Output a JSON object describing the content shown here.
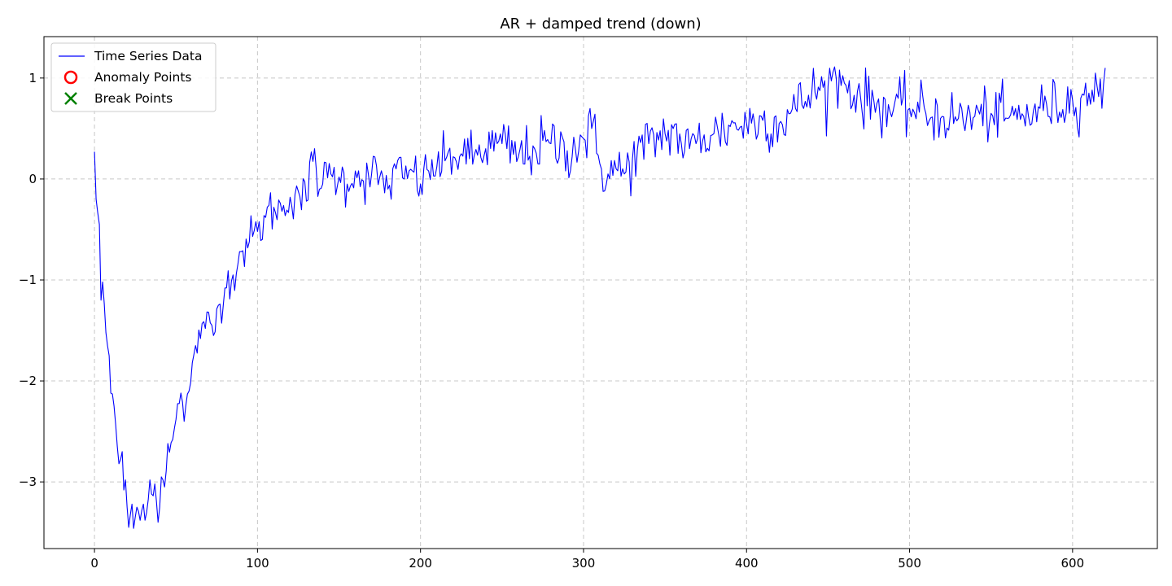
{
  "chart_data": {
    "type": "line",
    "title": "AR + damped trend (down)",
    "xlabel": "",
    "ylabel": "",
    "xlim": [
      -31,
      652
    ],
    "ylim": [
      -3.66,
      1.41
    ],
    "xticks": [
      0,
      100,
      200,
      300,
      400,
      500,
      600
    ],
    "yticks": [
      1,
      0,
      -1,
      -2,
      -3
    ],
    "ytick_labels": [
      "1",
      "0",
      "−1",
      "−2",
      "−3"
    ],
    "grid": true,
    "legend_position": "upper left",
    "legend": [
      {
        "label": "Time Series Data",
        "marker": "line",
        "color": "#0000ff"
      },
      {
        "label": "Anomaly Points",
        "marker": "circle",
        "color": "#ff0000"
      },
      {
        "label": "Break Points",
        "marker": "x",
        "color": "#008000"
      }
    ],
    "series": [
      {
        "name": "Time Series Data",
        "color": "#0000ff",
        "x_start": 0,
        "x_end": 620,
        "anchors": [
          [
            0,
            0.27
          ],
          [
            1,
            -0.2
          ],
          [
            3,
            -0.45
          ],
          [
            4,
            -1.2
          ],
          [
            5,
            -1.02
          ],
          [
            7,
            -1.52
          ],
          [
            9,
            -1.75
          ],
          [
            10,
            -2.12
          ],
          [
            12,
            -2.25
          ],
          [
            14,
            -2.65
          ],
          [
            15,
            -2.82
          ],
          [
            17,
            -2.7
          ],
          [
            18,
            -3.08
          ],
          [
            19,
            -2.98
          ],
          [
            20,
            -3.25
          ],
          [
            21,
            -3.45
          ],
          [
            23,
            -3.22
          ],
          [
            24,
            -3.46
          ],
          [
            26,
            -3.25
          ],
          [
            28,
            -3.38
          ],
          [
            30,
            -3.22
          ],
          [
            32,
            -3.3
          ],
          [
            34,
            -2.98
          ],
          [
            35,
            -3.12
          ],
          [
            37,
            -3.02
          ],
          [
            39,
            -3.4
          ],
          [
            41,
            -2.95
          ],
          [
            43,
            -3.05
          ],
          [
            45,
            -2.62
          ],
          [
            48,
            -2.58
          ],
          [
            50,
            -2.38
          ],
          [
            53,
            -2.12
          ],
          [
            55,
            -2.4
          ],
          [
            58,
            -2.1
          ],
          [
            60,
            -1.82
          ],
          [
            62,
            -1.65
          ],
          [
            65,
            -1.58
          ],
          [
            68,
            -1.48
          ],
          [
            70,
            -1.32
          ],
          [
            73,
            -1.55
          ],
          [
            76,
            -1.25
          ],
          [
            80,
            -1.08
          ],
          [
            85,
            -0.95
          ],
          [
            90,
            -0.72
          ],
          [
            95,
            -0.62
          ],
          [
            100,
            -0.52
          ],
          [
            105,
            -0.38
          ],
          [
            110,
            -0.28
          ],
          [
            115,
            -0.32
          ],
          [
            120,
            -0.18
          ],
          [
            125,
            -0.12
          ],
          [
            130,
            -0.22
          ],
          [
            135,
            0.3
          ],
          [
            138,
            -0.1
          ],
          [
            140,
            -0.05
          ],
          [
            145,
            0.05
          ],
          [
            150,
            0.02
          ],
          [
            155,
            -0.05
          ],
          [
            160,
            0.08
          ],
          [
            165,
            -0.02
          ],
          [
            170,
            0.05
          ],
          [
            175,
            0.02
          ],
          [
            180,
            -0.1
          ],
          [
            185,
            0.1
          ],
          [
            190,
            0.0
          ],
          [
            195,
            0.08
          ],
          [
            200,
            -0.05
          ],
          [
            205,
            0.08
          ],
          [
            210,
            0.12
          ],
          [
            215,
            0.18
          ],
          [
            220,
            0.22
          ],
          [
            225,
            0.25
          ],
          [
            230,
            0.2
          ],
          [
            240,
            0.3
          ],
          [
            250,
            0.35
          ],
          [
            260,
            0.22
          ],
          [
            270,
            0.3
          ],
          [
            280,
            0.35
          ],
          [
            290,
            0.28
          ],
          [
            300,
            0.4
          ],
          [
            305,
            0.5
          ],
          [
            310,
            0.15
          ],
          [
            315,
            0.05
          ],
          [
            320,
            0.1
          ],
          [
            325,
            0.05
          ],
          [
            330,
            0.2
          ],
          [
            340,
            0.35
          ],
          [
            350,
            0.45
          ],
          [
            355,
            0.5
          ],
          [
            360,
            0.35
          ],
          [
            365,
            0.3
          ],
          [
            370,
            0.4
          ],
          [
            380,
            0.45
          ],
          [
            390,
            0.52
          ],
          [
            400,
            0.55
          ],
          [
            410,
            0.58
          ],
          [
            420,
            0.55
          ],
          [
            430,
            0.7
          ],
          [
            440,
            0.85
          ],
          [
            450,
            0.92
          ],
          [
            455,
            1.0
          ],
          [
            460,
            0.95
          ],
          [
            470,
            0.8
          ],
          [
            480,
            0.75
          ],
          [
            490,
            0.68
          ],
          [
            500,
            0.7
          ],
          [
            510,
            0.65
          ],
          [
            520,
            0.62
          ],
          [
            530,
            0.6
          ],
          [
            540,
            0.62
          ],
          [
            550,
            0.65
          ],
          [
            560,
            0.6
          ],
          [
            570,
            0.62
          ],
          [
            580,
            0.7
          ],
          [
            590,
            0.72
          ],
          [
            600,
            0.78
          ],
          [
            605,
            0.8
          ],
          [
            610,
            0.85
          ],
          [
            615,
            0.92
          ],
          [
            618,
            0.7
          ],
          [
            620,
            1.1
          ]
        ],
        "noise_amplitude": [
          [
            0,
            0.03
          ],
          [
            100,
            0.12
          ],
          [
            200,
            0.12
          ],
          [
            300,
            0.15
          ],
          [
            400,
            0.14
          ],
          [
            500,
            0.14
          ],
          [
            620,
            0.13
          ]
        ]
      }
    ]
  }
}
